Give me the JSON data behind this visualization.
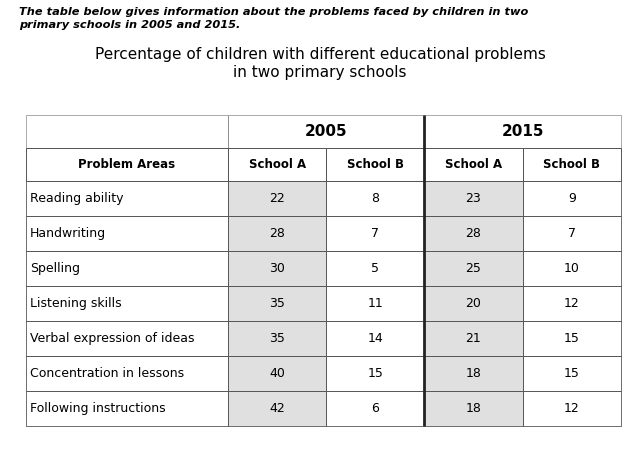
{
  "caption_line1": "The table below gives information about the problems faced by children in two",
  "caption_line2": "primary schools in 2005 and 2015.",
  "title_line1": "Percentage of children with different educational problems",
  "title_line2": "in two primary schools",
  "col_headers": [
    "Problem Areas",
    "School A",
    "School B",
    "School A",
    "School B"
  ],
  "rows": [
    [
      "Reading ability",
      "22",
      "8",
      "23",
      "9"
    ],
    [
      "Handwriting",
      "28",
      "7",
      "28",
      "7"
    ],
    [
      "Spelling",
      "30",
      "5",
      "25",
      "10"
    ],
    [
      "Listening skills",
      "35",
      "11",
      "20",
      "12"
    ],
    [
      "Verbal expression of ideas",
      "35",
      "14",
      "21",
      "15"
    ],
    [
      "Concentration in lessons",
      "40",
      "15",
      "18",
      "15"
    ],
    [
      "Following instructions",
      "42",
      "6",
      "18",
      "12"
    ]
  ],
  "bg_color": "#ffffff",
  "cell_bg_light": "#e0e0e0",
  "border_color": "#555555",
  "text_color": "#000000"
}
